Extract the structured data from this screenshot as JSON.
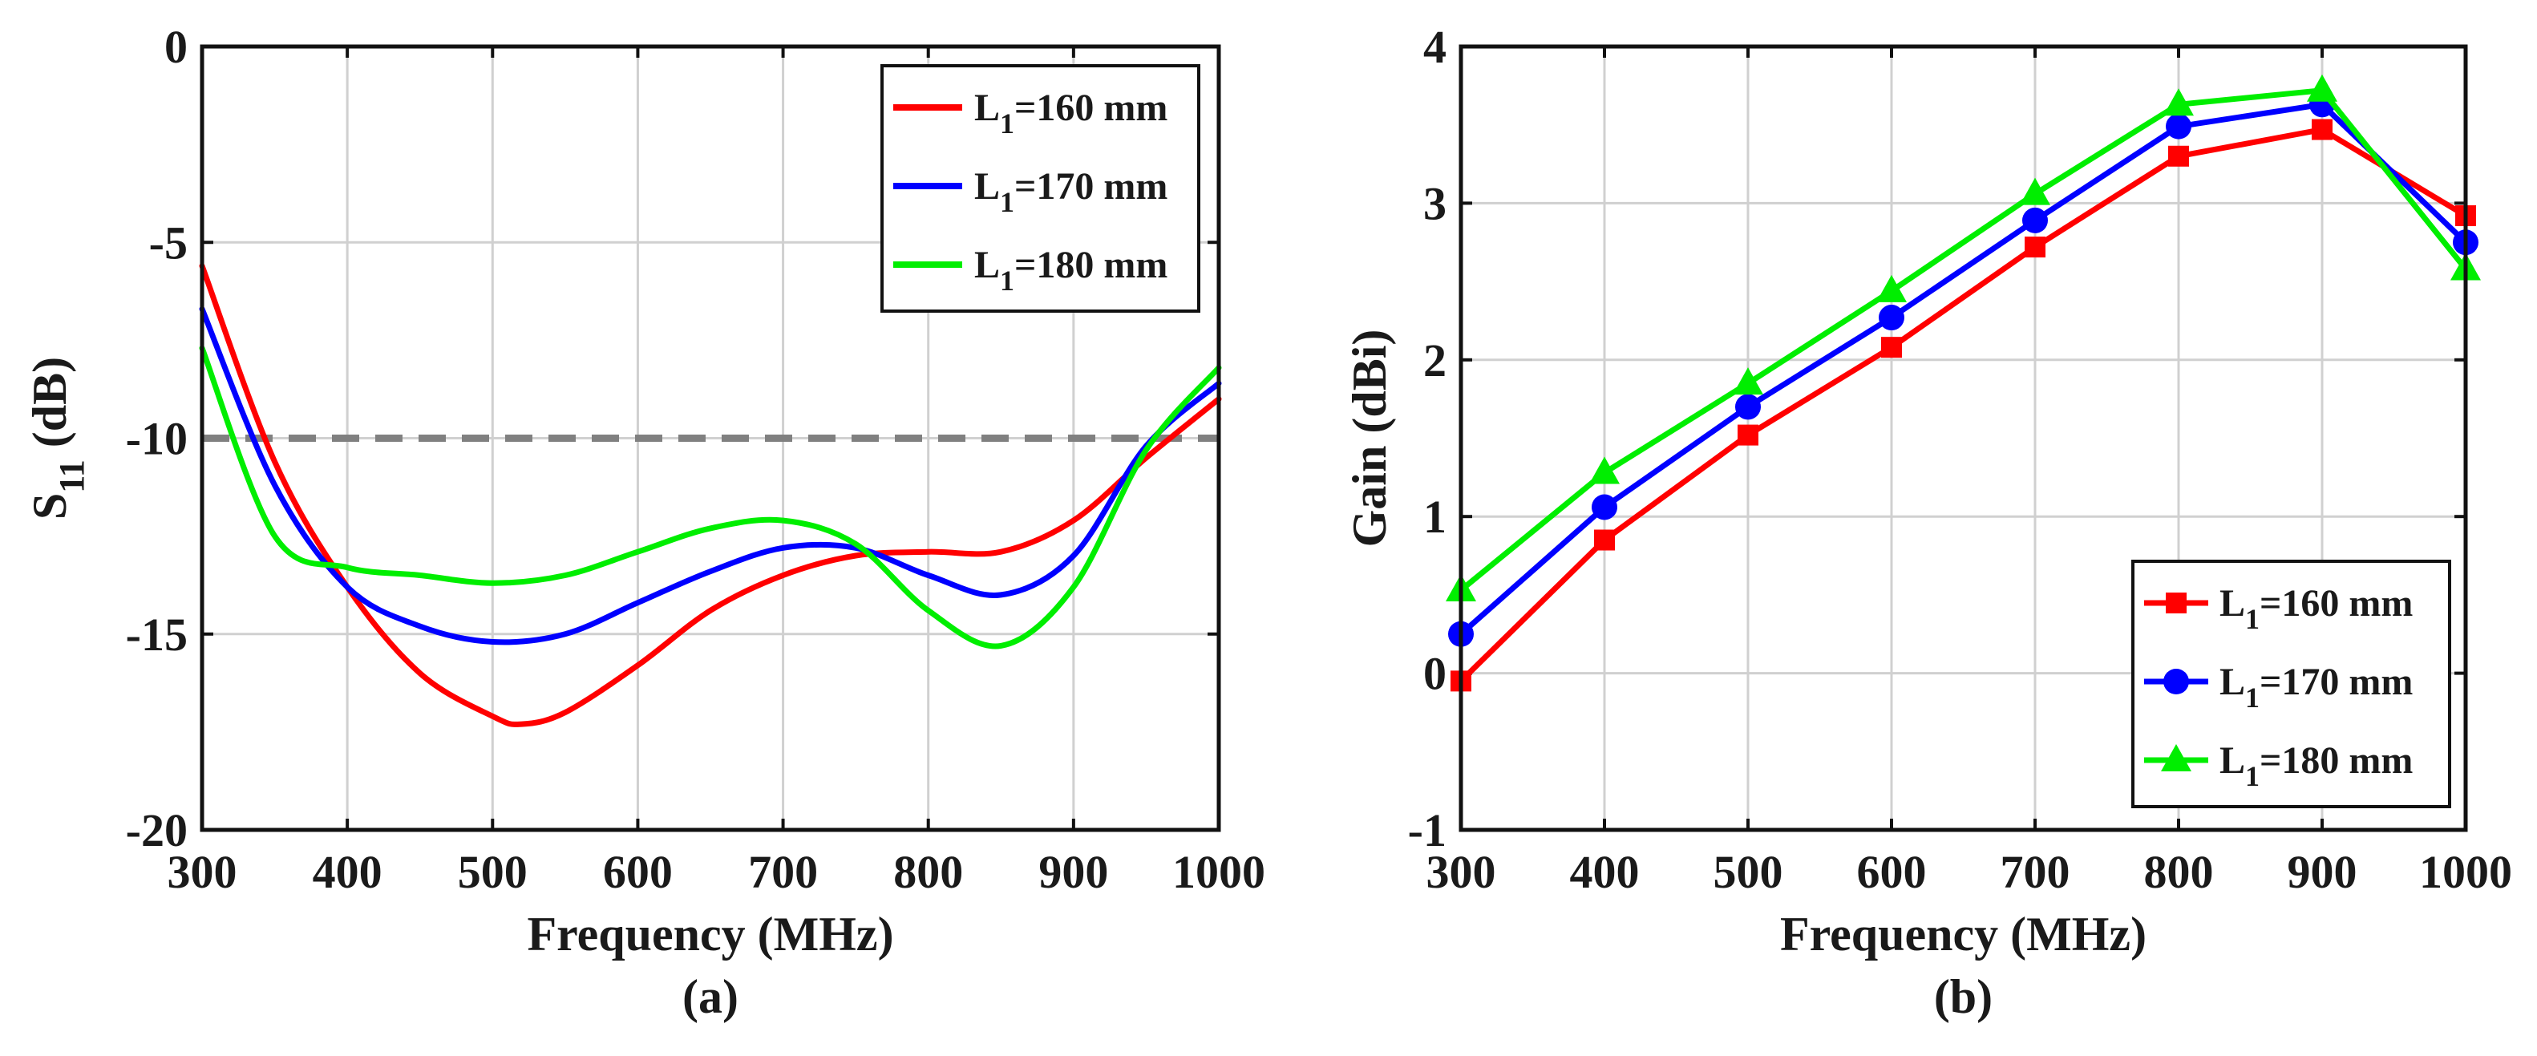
{
  "chart_data": [
    {
      "type": "line",
      "panel_label": "(a)",
      "title": "",
      "xlabel": "Frequency (MHz)",
      "ylabel_main": "S",
      "ylabel_sub": "11",
      "ylabel_unit": " (dB)",
      "xlim": [
        300,
        1000
      ],
      "ylim": [
        -20,
        0
      ],
      "xticks": [
        300,
        400,
        500,
        600,
        700,
        800,
        900,
        1000
      ],
      "yticks": [
        0,
        -5,
        -10,
        -15,
        -20
      ],
      "grid": true,
      "legend_position": "top-right",
      "reference_line": {
        "y": -10,
        "style": "dashed",
        "color": "#808080"
      },
      "series": [
        {
          "name_main": "L",
          "name_sub": "1",
          "name_rest": "=160 mm",
          "color": "#ff0000",
          "x": [
            300,
            350,
            400,
            450,
            500,
            520,
            550,
            600,
            650,
            700,
            750,
            800,
            850,
            900,
            950,
            1000
          ],
          "values": [
            -5.6,
            -10.6,
            -13.8,
            -16.0,
            -17.1,
            -17.3,
            -17.0,
            -15.8,
            -14.4,
            -13.5,
            -13.0,
            -12.9,
            -12.9,
            -12.1,
            -10.5,
            -9.0
          ]
        },
        {
          "name_main": "L",
          "name_sub": "1",
          "name_rest": "=170 mm",
          "color": "#0000ff",
          "x": [
            300,
            350,
            400,
            450,
            500,
            550,
            600,
            650,
            700,
            750,
            800,
            850,
            900,
            950,
            1000
          ],
          "values": [
            -6.7,
            -11.2,
            -13.8,
            -14.8,
            -15.2,
            -15.0,
            -14.2,
            -13.4,
            -12.8,
            -12.8,
            -13.5,
            -14.0,
            -13.0,
            -10.2,
            -8.6
          ]
        },
        {
          "name_main": "L",
          "name_sub": "1",
          "name_rest": "=180 mm",
          "color": "#00ee00",
          "x": [
            300,
            350,
            400,
            450,
            500,
            550,
            600,
            650,
            700,
            750,
            800,
            850,
            900,
            950,
            1000
          ],
          "values": [
            -7.7,
            -12.5,
            -13.3,
            -13.5,
            -13.7,
            -13.5,
            -12.9,
            -12.3,
            -12.1,
            -12.7,
            -14.4,
            -15.3,
            -13.8,
            -10.3,
            -8.2
          ]
        }
      ]
    },
    {
      "type": "line",
      "panel_label": "(b)",
      "title": "",
      "xlabel": "Frequency (MHz)",
      "ylabel": "Gain (dBi)",
      "xlim": [
        300,
        1000
      ],
      "ylim": [
        -1,
        4
      ],
      "xticks": [
        300,
        400,
        500,
        600,
        700,
        800,
        900,
        1000
      ],
      "yticks": [
        -1,
        0,
        1,
        2,
        3,
        4
      ],
      "grid": true,
      "legend_position": "bottom-right",
      "categories": [
        300,
        400,
        500,
        600,
        700,
        800,
        900,
        1000
      ],
      "series": [
        {
          "name_main": "L",
          "name_sub": "1",
          "name_rest": "=160 mm",
          "color": "#ff0000",
          "marker": "square",
          "values": [
            -0.05,
            0.85,
            1.52,
            2.08,
            2.72,
            3.3,
            3.47,
            2.92
          ]
        },
        {
          "name_main": "L",
          "name_sub": "1",
          "name_rest": "=170 mm",
          "color": "#0000ff",
          "marker": "circle",
          "values": [
            0.25,
            1.06,
            1.7,
            2.27,
            2.89,
            3.49,
            3.63,
            2.75
          ]
        },
        {
          "name_main": "L",
          "name_sub": "1",
          "name_rest": "=180 mm",
          "color": "#00ee00",
          "marker": "triangle",
          "values": [
            0.53,
            1.28,
            1.85,
            2.44,
            3.06,
            3.63,
            3.72,
            2.58
          ]
        }
      ]
    }
  ]
}
